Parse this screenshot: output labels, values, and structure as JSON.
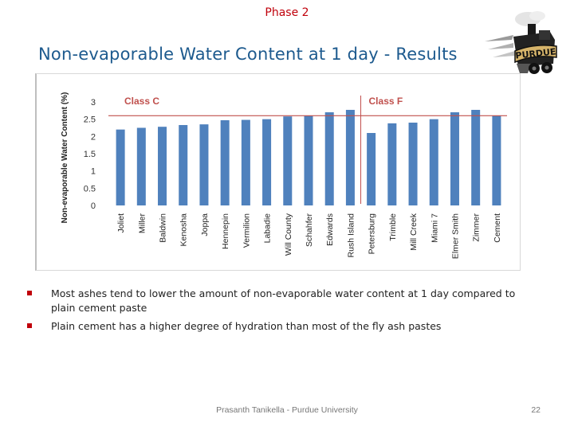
{
  "header": {
    "phase": "Phase 2"
  },
  "slide": {
    "title": "Non-evaporable Water Content at 1 day - Results"
  },
  "logo": {
    "text": "PURDUE"
  },
  "chart_data": {
    "type": "bar",
    "ylabel": "Non-evaporable Water Content (%)",
    "ylim": [
      0,
      3
    ],
    "yticks": [
      "0",
      "0.5",
      "1",
      "1.5",
      "2",
      "2.5",
      "3"
    ],
    "reference_line": 2.6,
    "class_labels": [
      "Class C",
      "Class F"
    ],
    "categories": [
      "Joliet",
      "Miller",
      "Baldwin",
      "Kenosha",
      "Joppa",
      "Hennepin",
      "Vermilion",
      "Labadie",
      "Will County",
      "Schahfer",
      "Edwards",
      "Rush Island",
      "Petersburg",
      "Trimble",
      "Mill Creek",
      "Miami 7",
      "Elmer Smith",
      "Zimmer",
      "Cement"
    ],
    "values": [
      2.2,
      2.25,
      2.28,
      2.33,
      2.35,
      2.47,
      2.48,
      2.5,
      2.58,
      2.6,
      2.7,
      2.77,
      2.1,
      2.38,
      2.4,
      2.5,
      2.7,
      2.77,
      2.6
    ],
    "colors": {
      "bar": "#4f81bd",
      "ref_line": "#c0504d",
      "class_label": "#c0504d"
    }
  },
  "bullets": [
    "Most ashes tend to lower the amount of non-evaporable water content at 1 day compared to plain cement paste",
    "Plain cement has a higher degree of hydration than most of the fly ash pastes"
  ],
  "footer": {
    "text": "Prasanth Tanikella - Purdue University",
    "page": "22"
  }
}
